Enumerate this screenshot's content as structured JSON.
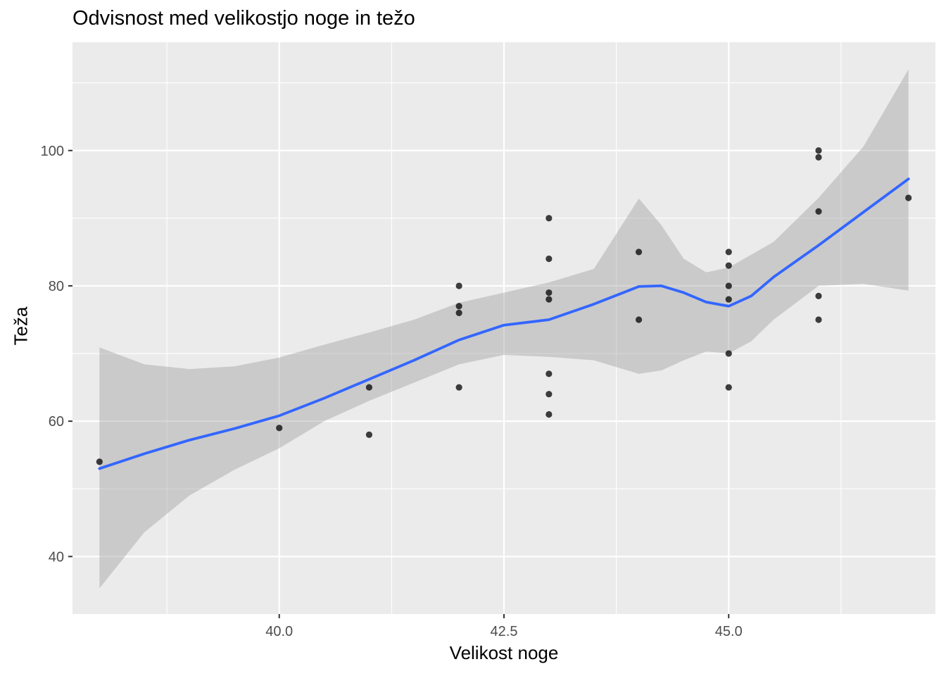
{
  "chart_data": {
    "type": "scatter",
    "title": "Odvisnost med velikostjo noge in težo",
    "xlabel": "Velikost noge",
    "ylabel": "Teža",
    "xlim": [
      37.7,
      47.3
    ],
    "ylim": [
      31.5,
      116
    ],
    "x_ticks": [
      40.0,
      42.5,
      45.0
    ],
    "x_tick_labels": [
      "40.0",
      "42.5",
      "45.0"
    ],
    "x_minor": [
      38.75,
      41.25,
      43.75,
      46.25
    ],
    "y_ticks": [
      40,
      60,
      80,
      100
    ],
    "y_tick_labels": [
      "40",
      "60",
      "80",
      "100"
    ],
    "y_minor": [
      50,
      70,
      90,
      110
    ],
    "grid": true,
    "points": [
      {
        "x": 38,
        "y": 54
      },
      {
        "x": 40,
        "y": 59
      },
      {
        "x": 41,
        "y": 65
      },
      {
        "x": 41,
        "y": 58
      },
      {
        "x": 42,
        "y": 80
      },
      {
        "x": 42,
        "y": 77
      },
      {
        "x": 42,
        "y": 76
      },
      {
        "x": 42,
        "y": 65
      },
      {
        "x": 43,
        "y": 90
      },
      {
        "x": 43,
        "y": 84
      },
      {
        "x": 43,
        "y": 79
      },
      {
        "x": 43,
        "y": 78
      },
      {
        "x": 43,
        "y": 67
      },
      {
        "x": 43,
        "y": 64
      },
      {
        "x": 43,
        "y": 61
      },
      {
        "x": 44,
        "y": 85
      },
      {
        "x": 44,
        "y": 75
      },
      {
        "x": 45,
        "y": 85
      },
      {
        "x": 45,
        "y": 83
      },
      {
        "x": 45,
        "y": 80
      },
      {
        "x": 45,
        "y": 78
      },
      {
        "x": 45,
        "y": 70
      },
      {
        "x": 45,
        "y": 65
      },
      {
        "x": 46,
        "y": 100
      },
      {
        "x": 46,
        "y": 99
      },
      {
        "x": 46,
        "y": 91
      },
      {
        "x": 46,
        "y": 78.5
      },
      {
        "x": 46,
        "y": 75
      },
      {
        "x": 47,
        "y": 93
      }
    ],
    "smooth": {
      "x": [
        38.0,
        38.5,
        39.0,
        39.5,
        40.0,
        40.5,
        41.0,
        41.5,
        42.0,
        42.5,
        43.0,
        43.5,
        44.0,
        44.25,
        44.5,
        44.75,
        45.0,
        45.25,
        45.5,
        46.0,
        46.5,
        47.0
      ],
      "y": [
        53.0,
        55.2,
        57.2,
        58.9,
        60.8,
        63.4,
        66.2,
        69.0,
        72.0,
        74.2,
        75.0,
        77.3,
        79.9,
        80.0,
        79.0,
        77.6,
        77.0,
        78.5,
        81.3,
        86.0,
        90.9,
        95.8
      ],
      "lower": [
        35.3,
        43.6,
        49.0,
        52.8,
        56.0,
        60.0,
        63.0,
        65.7,
        68.4,
        69.8,
        69.5,
        69.0,
        67.0,
        67.5,
        69.0,
        70.3,
        70.0,
        71.8,
        75.0,
        80.0,
        80.3,
        79.3
      ],
      "upper": [
        70.9,
        68.4,
        67.7,
        68.1,
        69.4,
        71.3,
        73.1,
        75.0,
        77.5,
        79.0,
        80.5,
        82.5,
        92.9,
        89.0,
        84.0,
        82.0,
        82.7,
        84.6,
        86.5,
        93.0,
        100.6,
        112.0
      ]
    },
    "colors": {
      "panel": "#ebebeb",
      "grid": "#ffffff",
      "points": "#000000",
      "line": "#3366ff",
      "ribbon": "#999999",
      "tick_text": "#4d4d4d"
    }
  }
}
